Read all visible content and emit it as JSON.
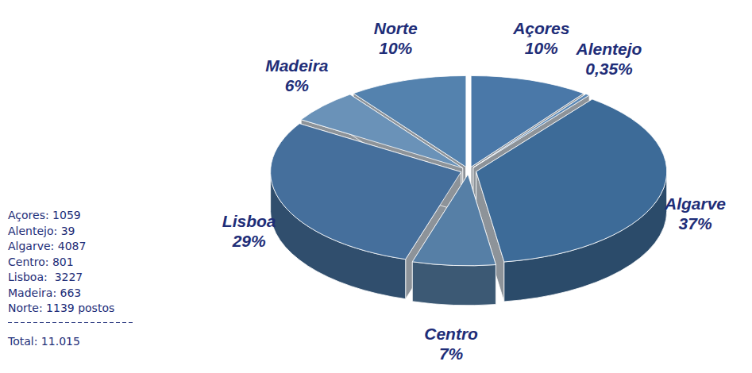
{
  "chart_data": {
    "type": "pie",
    "categories": [
      "Açores",
      "Alentejo",
      "Algarve",
      "Centro",
      "Lisboa",
      "Madeira",
      "Norte"
    ],
    "values": [
      10,
      0.35,
      37,
      7,
      29,
      6,
      10
    ],
    "value_labels": [
      "10%",
      "0,35%",
      "37%",
      "7%",
      "29%",
      "6%",
      "10%"
    ],
    "colors": [
      "#4a78a8",
      "#5b88b5",
      "#3d6b98",
      "#567fa6",
      "#456f9c",
      "#6a92b8",
      "#5482ae"
    ],
    "data_labels": true,
    "annotations": [
      "Açores: 1059",
      "Alentejo: 39",
      "Algarve: 4087",
      "Centro: 801",
      "Lisboa:  3227",
      "Madeira: 663",
      "Norte: 1139 postos",
      "Total: 11.015"
    ]
  }
}
